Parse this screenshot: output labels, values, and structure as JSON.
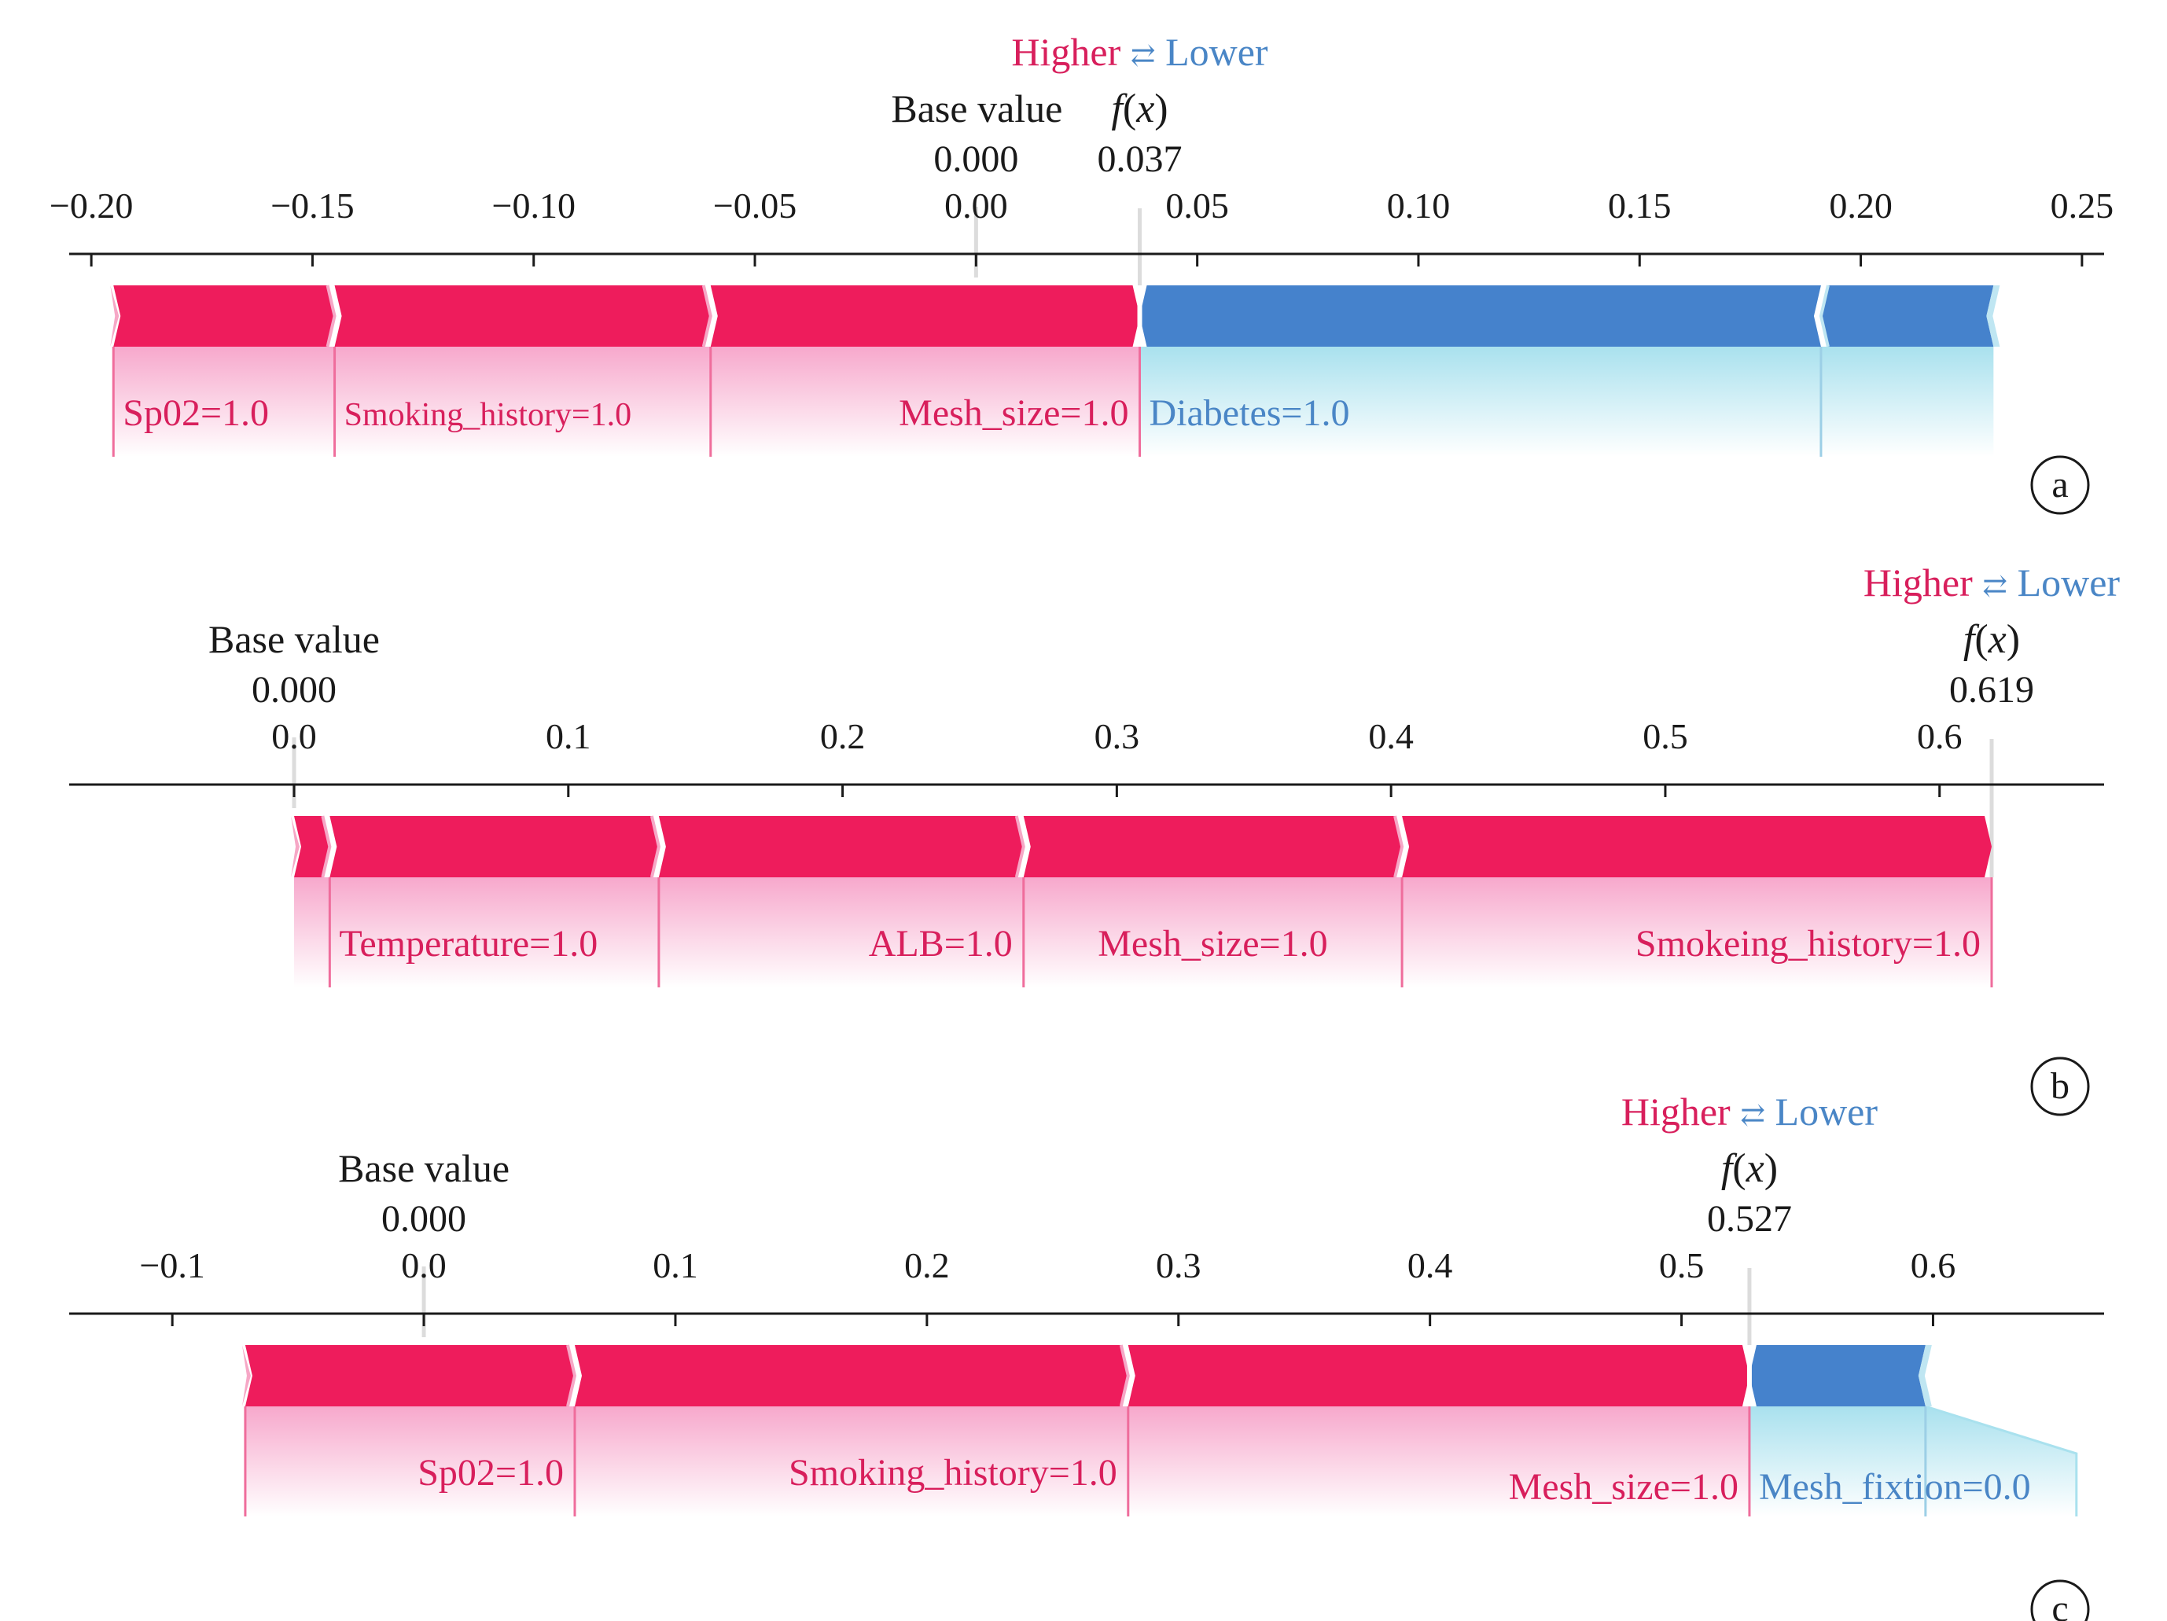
{
  "colors": {
    "positive": "#ee1c5c",
    "negative": "#4582cc",
    "positive_fade": "#f7a8cc",
    "negative_fade": "#a9e1ee",
    "text_pos": "#d81f5c",
    "text_neg": "#4a86c6",
    "axis": "#1a1a1a",
    "marker": "#dcdcdc"
  },
  "legend": {
    "higher": "Higher",
    "arrow": "⇄",
    "lower": "Lower"
  },
  "labels": {
    "base_value": "Base value",
    "fx_f": "f",
    "fx_x": "x"
  },
  "chart_data": [
    {
      "type": "force",
      "panel": "a",
      "xlim": [
        -0.205,
        0.255
      ],
      "ticks": [
        -0.2,
        -0.15,
        -0.1,
        -0.05,
        0.0,
        0.05,
        0.1,
        0.15,
        0.2,
        0.25
      ],
      "tick_labels": [
        "−0.20",
        "−0.15",
        "−0.10",
        "−0.05",
        "0.00",
        "0.05",
        "0.10",
        "0.15",
        "0.20",
        "0.25"
      ],
      "base_value": 0.0,
      "base_value_label": "0.000",
      "fx": 0.037,
      "fx_label": "0.037",
      "bars": [
        {
          "sign": "pos",
          "from": -0.195,
          "to": -0.145
        },
        {
          "sign": "pos",
          "from": -0.145,
          "to": -0.06
        },
        {
          "sign": "pos",
          "from": -0.06,
          "to": 0.037
        },
        {
          "sign": "neg",
          "from": 0.037,
          "to": 0.191
        },
        {
          "sign": "neg",
          "from": 0.191,
          "to": 0.23
        }
      ],
      "labels": [
        {
          "text": "Sp02=1.0",
          "from": -0.195,
          "to": -0.145,
          "sign": "pos",
          "align": "left",
          "size": "large",
          "row": 0
        },
        {
          "text": "Smoking_history=1.0",
          "from": -0.145,
          "to": -0.06,
          "sign": "pos",
          "align": "left",
          "size": "small",
          "row": 0
        },
        {
          "text": "Mesh_size=1.0",
          "from": -0.06,
          "to": 0.037,
          "sign": "pos",
          "align": "right",
          "size": "large",
          "row": 0
        },
        {
          "text": "Diabetes=1.0",
          "from": 0.037,
          "to": 0.191,
          "sign": "neg",
          "align": "left",
          "size": "large",
          "row": 0
        }
      ],
      "fade_to": null
    },
    {
      "type": "force",
      "panel": "b",
      "xlim": [
        -0.082,
        0.66
      ],
      "ticks": [
        0.0,
        0.1,
        0.2,
        0.3,
        0.4,
        0.5,
        0.6
      ],
      "tick_labels": [
        "0.0",
        "0.1",
        "0.2",
        "0.3",
        "0.4",
        "0.5",
        "0.6"
      ],
      "base_value": 0.0,
      "base_value_label": "0.000",
      "fx": 0.619,
      "fx_label": "0.619",
      "bars": [
        {
          "sign": "pos",
          "from": 0.0,
          "to": 0.013
        },
        {
          "sign": "pos",
          "from": 0.013,
          "to": 0.133
        },
        {
          "sign": "pos",
          "from": 0.133,
          "to": 0.266
        },
        {
          "sign": "pos",
          "from": 0.266,
          "to": 0.404
        },
        {
          "sign": "pos",
          "from": 0.404,
          "to": 0.619
        }
      ],
      "labels": [
        {
          "text": "Temperature=1.0",
          "from": 0.013,
          "to": 0.133,
          "sign": "pos",
          "align": "left",
          "size": "large",
          "row": 0
        },
        {
          "text": "ALB=1.0",
          "from": 0.133,
          "to": 0.266,
          "sign": "pos",
          "align": "right",
          "size": "large",
          "row": 0
        },
        {
          "text": "Mesh_size=1.0",
          "from": 0.266,
          "to": 0.404,
          "sign": "pos",
          "align": "center",
          "size": "large",
          "row": 0
        },
        {
          "text": "Smokeing_history=1.0",
          "from": 0.404,
          "to": 0.619,
          "sign": "pos",
          "align": "right",
          "size": "large",
          "row": 0
        }
      ],
      "fade_to": null
    },
    {
      "type": "force",
      "panel": "c",
      "xlim": [
        -0.141,
        0.668
      ],
      "ticks": [
        -0.1,
        0.0,
        0.1,
        0.2,
        0.3,
        0.4,
        0.5,
        0.6
      ],
      "tick_labels": [
        "−0.1",
        "0.0",
        "0.1",
        "0.2",
        "0.3",
        "0.4",
        "0.5",
        "0.6"
      ],
      "base_value": 0.0,
      "base_value_label": "0.000",
      "fx": 0.527,
      "fx_label": "0.527",
      "bars": [
        {
          "sign": "pos",
          "from": -0.071,
          "to": 0.06
        },
        {
          "sign": "pos",
          "from": 0.06,
          "to": 0.28
        },
        {
          "sign": "pos",
          "from": 0.28,
          "to": 0.527
        },
        {
          "sign": "neg",
          "from": 0.527,
          "to": 0.597
        }
      ],
      "labels": [
        {
          "text": "Sp02=1.0",
          "from": -0.071,
          "to": 0.06,
          "sign": "pos",
          "align": "right",
          "size": "large",
          "row": 0
        },
        {
          "text": "Smoking_history=1.0",
          "from": 0.06,
          "to": 0.28,
          "sign": "pos",
          "align": "right",
          "size": "large",
          "row": 0
        },
        {
          "text": "Mesh_size=1.0",
          "from": 0.28,
          "to": 0.527,
          "sign": "pos",
          "align": "right",
          "size": "large",
          "row": 1
        },
        {
          "text": "Mesh_fixtion=0.0",
          "from": 0.527,
          "to": 0.597,
          "sign": "neg",
          "align": "left",
          "size": "large",
          "row": 1
        }
      ],
      "fade_to": 0.657
    }
  ]
}
